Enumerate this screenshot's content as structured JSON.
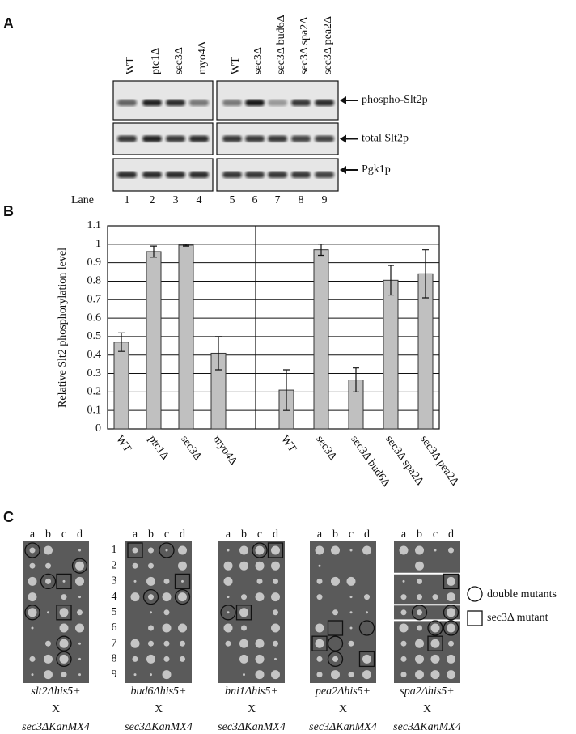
{
  "panel_a": {
    "label": "A",
    "lanes": [
      "WT",
      "ptc1Δ",
      "sec3Δ",
      "myo4Δ",
      "WT",
      "sec3Δ",
      "sec3Δ bud6Δ",
      "sec3Δ spa2Δ",
      "sec3Δ pea2Δ"
    ],
    "lane_title": "Lane",
    "lane_numbers": [
      "1",
      "2",
      "3",
      "4",
      "5",
      "6",
      "7",
      "8",
      "9"
    ],
    "rows": [
      "phospho-Slt2p",
      "total Slt2p",
      "Pgk1p"
    ]
  },
  "chart_data": {
    "type": "bar",
    "panel_label": "B",
    "y_label": "Relative Slt2 phosphorylation level",
    "categories": [
      "WT",
      "ptc1Δ",
      "sec3Δ",
      "myo4Δ",
      "WT",
      "sec3Δ",
      "sec3Δ bud6Δ",
      "sec3Δ spa2Δ",
      "sec3Δ pea2Δ"
    ],
    "values": [
      0.47,
      0.96,
      0.995,
      0.41,
      0.21,
      0.97,
      0.265,
      0.805,
      0.84
    ],
    "errors": [
      0.05,
      0.03,
      0.005,
      0.09,
      0.11,
      0.03,
      0.065,
      0.08,
      0.13
    ],
    "color": "#c0c0c0",
    "ylim": [
      0,
      1.1
    ],
    "yticks": [
      0,
      0.1,
      0.2,
      0.3,
      0.4,
      0.5,
      0.6,
      0.7,
      0.8,
      0.9,
      1,
      1.1
    ],
    "grid": true
  },
  "panel_c": {
    "label": "C",
    "columns": [
      "a",
      "b",
      "c",
      "d"
    ],
    "rows": [
      "1",
      "2",
      "3",
      "4",
      "5",
      "6",
      "7",
      "8",
      "9"
    ],
    "plates": [
      {
        "strain": "slt2Δhis5+",
        "cross": "X",
        "partner": "sec3ΔKanMX4"
      },
      {
        "strain": "bud6Δhis5+",
        "cross": "X",
        "partner": "sec3ΔKanMX4"
      },
      {
        "strain": "bni1Δhis5+",
        "cross": "X",
        "partner": "sec3ΔKanMX4"
      },
      {
        "strain": "pea2Δhis5+",
        "cross": "X",
        "partner": "sec3ΔKanMX4"
      },
      {
        "strain": "spa2Δhis5+",
        "cross": "X",
        "partner": "sec3ΔKanMX4"
      }
    ],
    "legend": [
      "double mutants",
      "sec3Δ mutant"
    ]
  }
}
